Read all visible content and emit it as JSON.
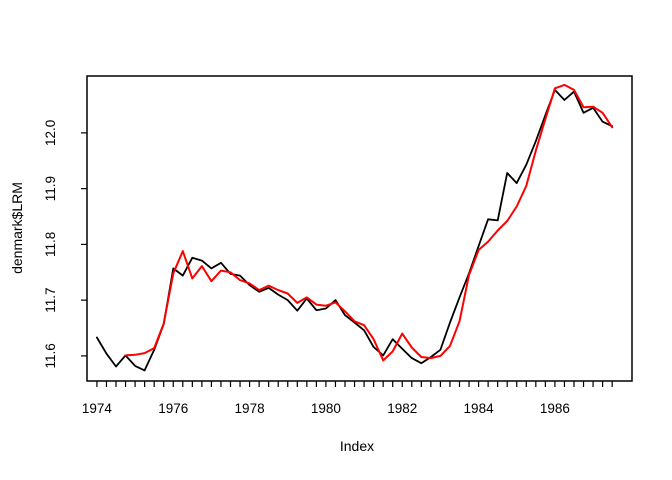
{
  "window": {
    "background": "#ffffff"
  },
  "chart_data": {
    "type": "line",
    "title": "",
    "xlabel": "Index",
    "ylabel": "denmark$LRM",
    "x_unit": "year (quarterly points)",
    "xlim": [
      1973.74,
      1988.02
    ],
    "ylim": [
      11.555,
      12.102
    ],
    "grid": false,
    "legend": false,
    "x_tick_years": [
      1974,
      1976,
      1978,
      1980,
      1982,
      1984,
      1986
    ],
    "x_tick_labels": [
      "1974",
      "1976",
      "1978",
      "1980",
      "1982",
      "1984",
      "1986"
    ],
    "minor_x_tick_start": 1974.0,
    "minor_x_tick_end": 1987.5,
    "minor_x_tick_step": 0.25,
    "y_ticks": [
      11.6,
      11.7,
      11.8,
      11.9,
      12.0
    ],
    "y_tick_labels": [
      "11.6",
      "11.7",
      "11.8",
      "11.9",
      "12.0"
    ],
    "series": [
      {
        "name": "black-series-actual",
        "color": "#000000",
        "line_width": 1.8,
        "x_start": 1974.0,
        "x_step": 0.25,
        "values": [
          11.633,
          11.604,
          11.581,
          11.601,
          11.582,
          11.574,
          11.611,
          11.657,
          11.757,
          11.744,
          11.776,
          11.771,
          11.757,
          11.767,
          11.747,
          11.744,
          11.727,
          11.715,
          11.722,
          11.71,
          11.7,
          11.681,
          11.703,
          11.682,
          11.685,
          11.7,
          11.673,
          11.66,
          11.646,
          11.616,
          11.601,
          11.63,
          11.613,
          11.596,
          11.587,
          11.598,
          11.611,
          11.66,
          11.705,
          11.748,
          11.797,
          11.845,
          11.843,
          11.928,
          11.91,
          11.943,
          11.985,
          12.032,
          12.077,
          12.059,
          12.074,
          12.036,
          12.045,
          12.02,
          12.012
        ]
      },
      {
        "name": "red-series-overlay",
        "color": "#ff0000",
        "line_width": 2.0,
        "x_start": 1974.75,
        "x_step": 0.25,
        "values": [
          11.601,
          11.602,
          11.605,
          11.614,
          11.658,
          11.748,
          11.788,
          11.739,
          11.761,
          11.734,
          11.753,
          11.75,
          11.736,
          11.73,
          11.718,
          11.726,
          11.718,
          11.712,
          11.695,
          11.705,
          11.692,
          11.69,
          11.696,
          11.68,
          11.662,
          11.655,
          11.63,
          11.592,
          11.608,
          11.64,
          11.615,
          11.598,
          11.596,
          11.6,
          11.618,
          11.662,
          11.745,
          11.79,
          11.805,
          11.825,
          11.842,
          11.868,
          11.905,
          11.968,
          12.025,
          12.08,
          12.086,
          12.077,
          12.046,
          12.047,
          12.036,
          12.01
        ]
      }
    ]
  }
}
